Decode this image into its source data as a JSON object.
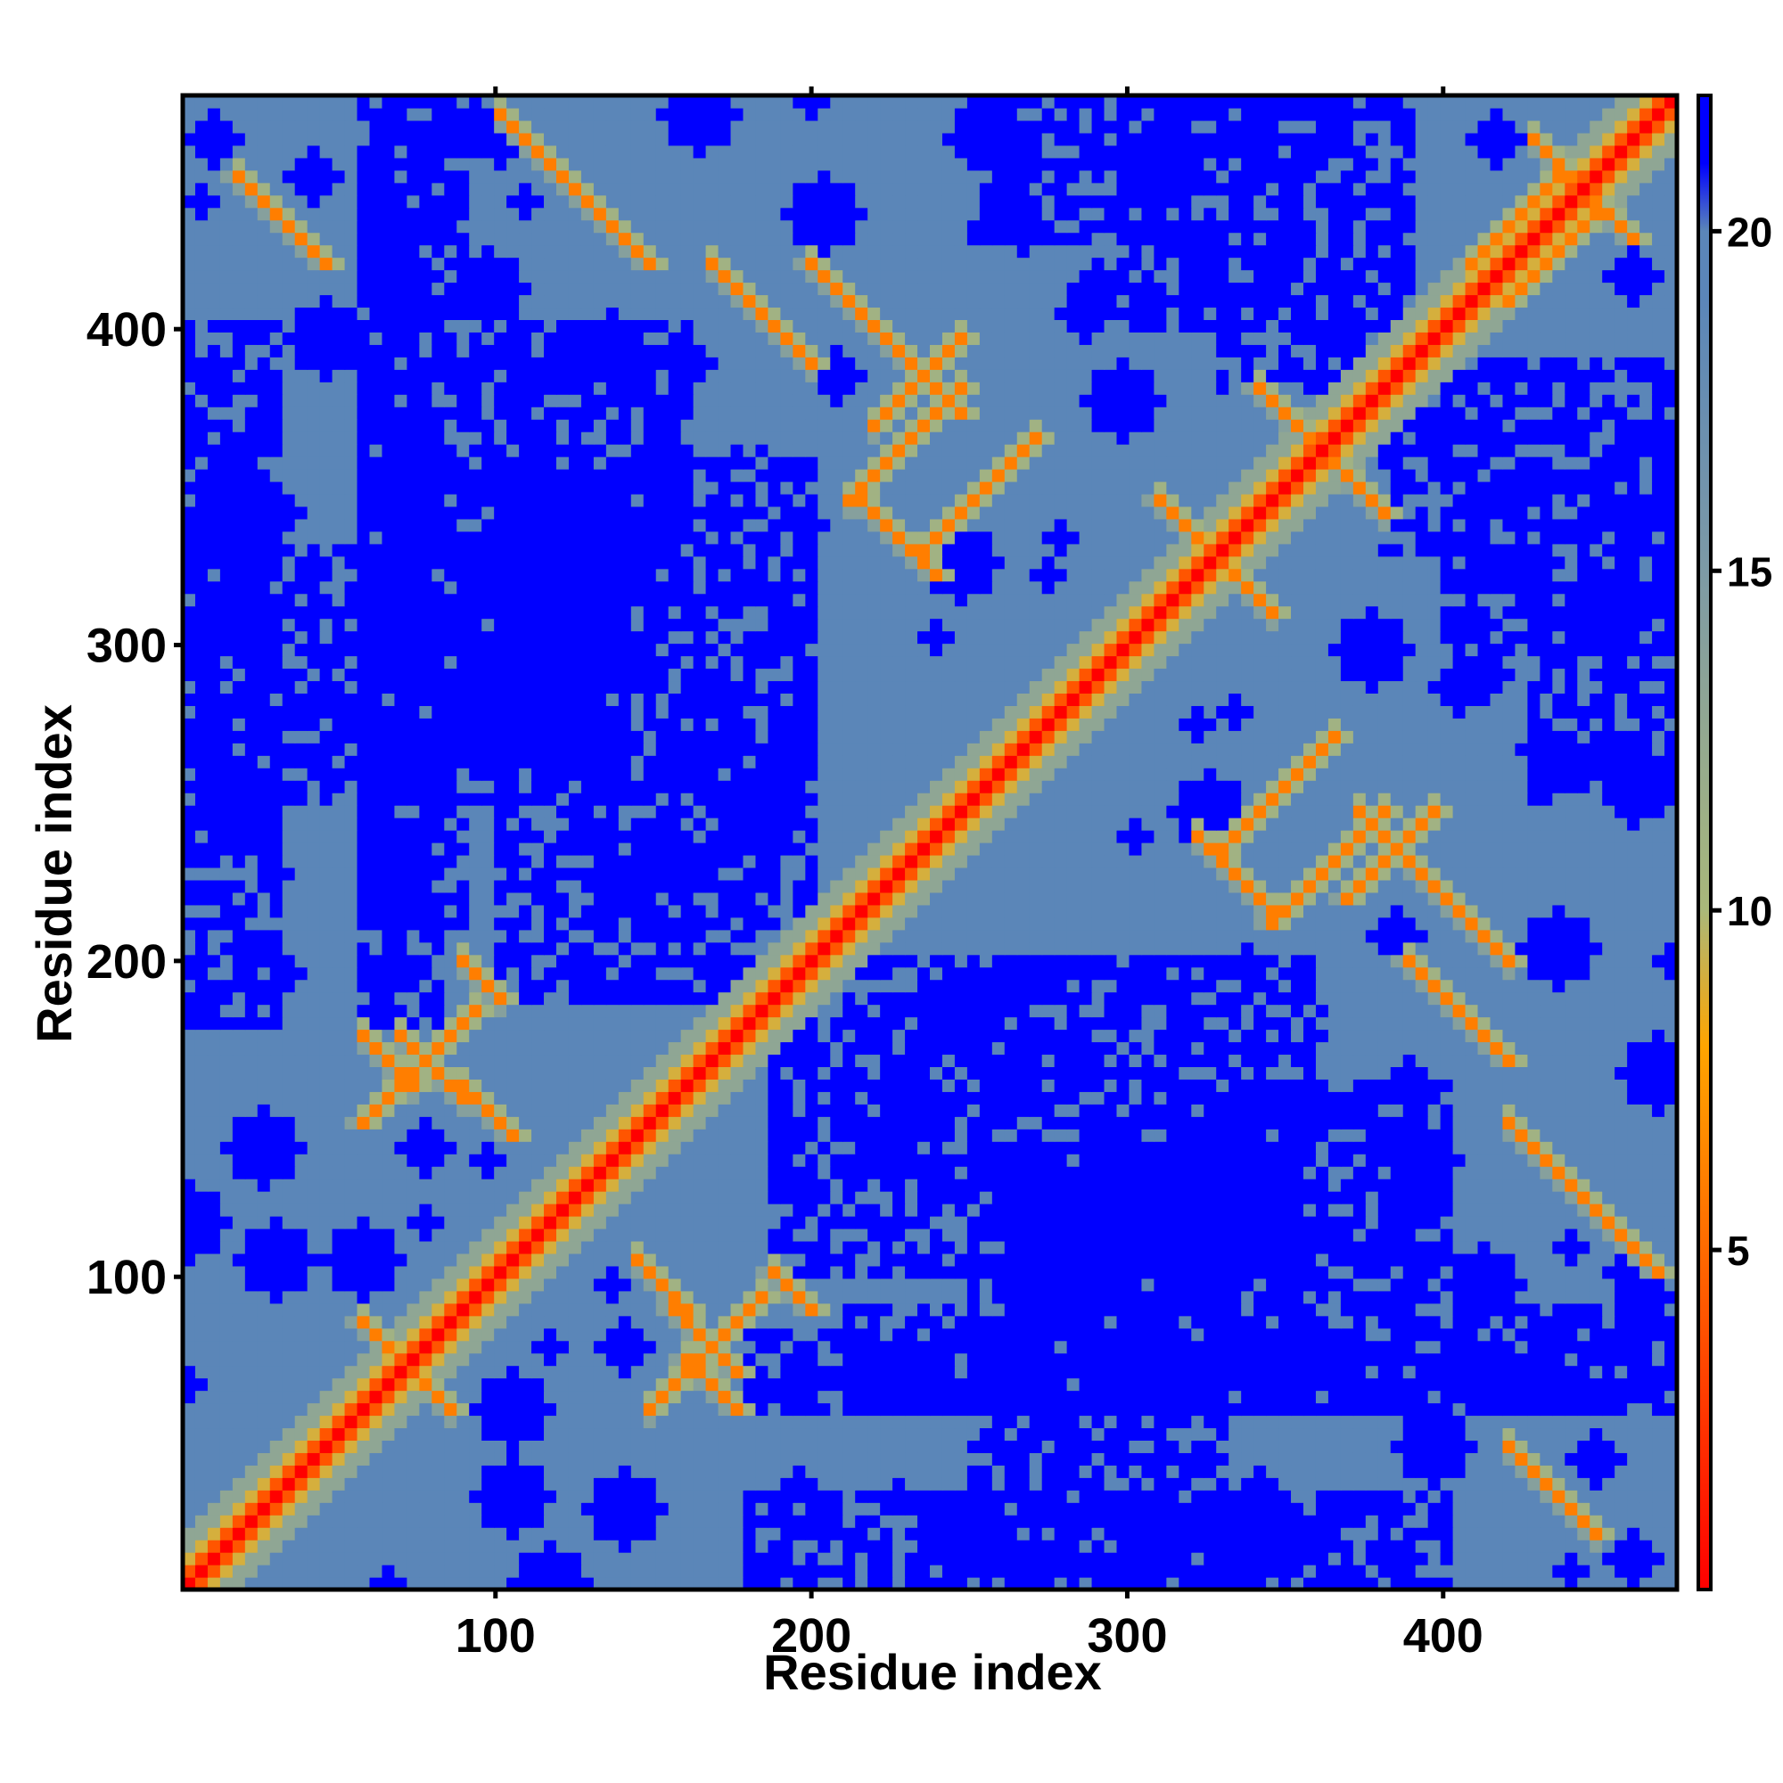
{
  "chart_data": {
    "type": "heatmap",
    "title": "",
    "xlabel": "Residue index",
    "ylabel": "Residue index",
    "xlim": [
      1,
      474
    ],
    "ylim": [
      1,
      474
    ],
    "x_ticks": [
      100,
      200,
      300,
      400
    ],
    "y_ticks": [
      100,
      200,
      300,
      400
    ],
    "colorbar": {
      "range": [
        0,
        22
      ],
      "ticks": [
        5,
        10,
        15,
        20
      ],
      "stops": [
        {
          "value": 0,
          "color": "#ff0000"
        },
        {
          "value": 5,
          "color": "#ff6a00"
        },
        {
          "value": 8,
          "color": "#ffa500"
        },
        {
          "value": 10,
          "color": "#aab87a"
        },
        {
          "value": 15,
          "color": "#7d9aa6"
        },
        {
          "value": 19,
          "color": "#5b86b8"
        },
        {
          "value": 20,
          "color": "#5b86b8"
        },
        {
          "value": 21,
          "color": "#0000ff"
        },
        {
          "value": 22,
          "color": "#0000ff"
        }
      ]
    },
    "matrix_description": "Symmetric residue-residue distance map; diagonal near 0, background ~19, far pairs saturate at 22.",
    "features": {
      "diagonal_value": 0,
      "background_value": 19,
      "saturation_value": 22,
      "contact_bands": [
        {
          "i": 60,
          "j": 85,
          "len": 25,
          "dir": "anti"
        },
        {
          "i": 90,
          "j": 160,
          "len": 20,
          "dir": "anti"
        },
        {
          "i": 160,
          "j": 75,
          "len": 20,
          "dir": "anti"
        },
        {
          "i": 120,
          "j": 450,
          "len": 30,
          "dir": "anti"
        },
        {
          "i": 60,
          "j": 150,
          "len": 40,
          "dir": "parallel"
        },
        {
          "i": 155,
          "j": 90,
          "len": 25,
          "dir": "anti"
        },
        {
          "i": 190,
          "j": 100,
          "len": 15,
          "dir": "anti"
        },
        {
          "i": 200,
          "j": 420,
          "len": 50,
          "dir": "anti"
        },
        {
          "i": 220,
          "j": 340,
          "len": 25,
          "dir": "anti"
        },
        {
          "i": 235,
          "j": 330,
          "len": 40,
          "dir": "parallel"
        },
        {
          "i": 310,
          "j": 345,
          "len": 25,
          "dir": "anti"
        },
        {
          "i": 330,
          "j": 230,
          "len": 20,
          "dir": "anti"
        },
        {
          "i": 340,
          "j": 380,
          "len": 30,
          "dir": "anti"
        },
        {
          "i": 345,
          "j": 210,
          "len": 40,
          "dir": "parallel"
        },
        {
          "i": 370,
          "j": 220,
          "len": 30,
          "dir": "parallel"
        },
        {
          "i": 390,
          "j": 200,
          "len": 35,
          "dir": "anti"
        },
        {
          "i": 420,
          "j": 410,
          "len": 30,
          "dir": "parallel"
        },
        {
          "i": 440,
          "j": 450,
          "len": 25,
          "dir": "anti"
        },
        {
          "i": 440,
          "j": 130,
          "len": 30,
          "dir": "anti"
        },
        {
          "i": 20,
          "j": 450,
          "len": 30,
          "dir": "anti"
        }
      ],
      "far_blocks": [
        {
          "x": [
            1,
            30
          ],
          "y": [
            180,
            400
          ]
        },
        {
          "x": [
            60,
            80
          ],
          "y": [
            180,
            474
          ]
        },
        {
          "x": [
            100,
            130
          ],
          "y": [
            280,
            340
          ]
        },
        {
          "x": [
            210,
            474
          ],
          "y": [
            60,
            90
          ]
        },
        {
          "x": [
            250,
            330
          ],
          "y": [
            1,
            140
          ]
        },
        {
          "x": [
            300,
            330
          ],
          "y": [
            400,
            474
          ]
        },
        {
          "x": [
            430,
            474
          ],
          "y": [
            250,
            320
          ]
        },
        {
          "x": [
            100,
            200
          ],
          "y": [
            190,
            360
          ]
        },
        {
          "x": [
            340,
            400
          ],
          "y": [
            90,
            160
          ]
        },
        {
          "x": [
            380,
            474
          ],
          "y": [
            330,
            390
          ]
        }
      ]
    }
  }
}
